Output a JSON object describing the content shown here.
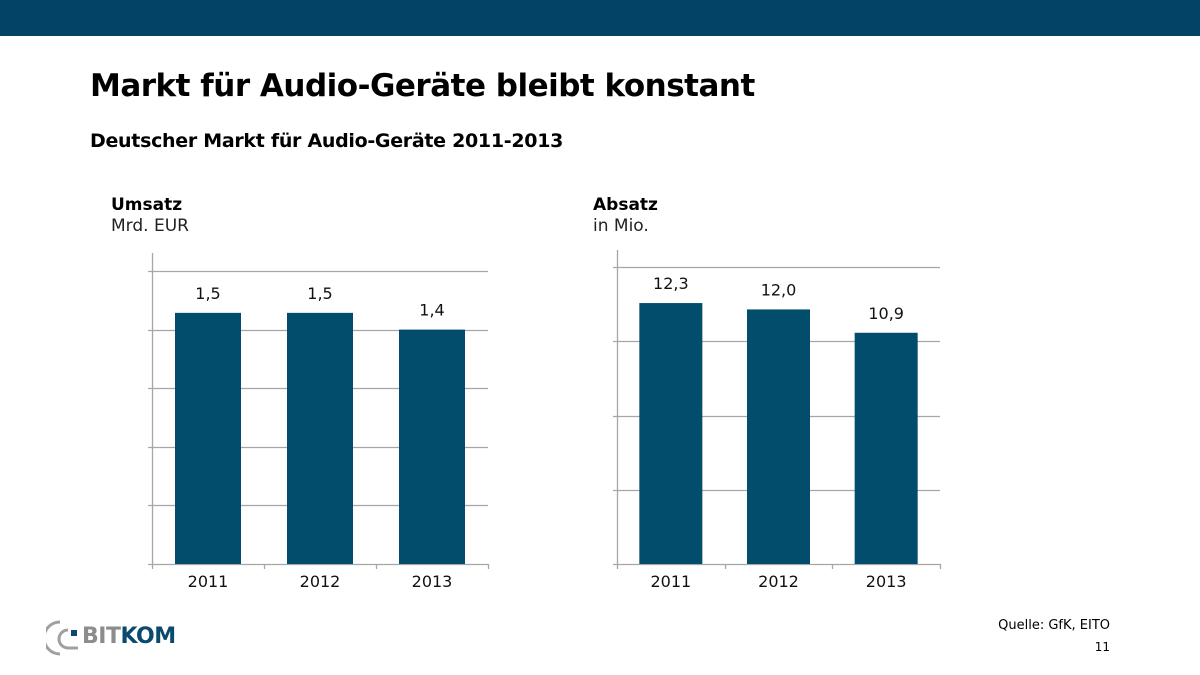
{
  "header": {
    "title": "Markt für Audio-Geräte bleibt konstant",
    "subtitle": "Deutscher Markt für Audio-Geräte 2011-2013"
  },
  "footer": {
    "source": "Quelle: GfK, EITO",
    "page_number": "11",
    "logo": {
      "part1": "BIT",
      "part2": "KOM"
    }
  },
  "colors": {
    "bar": "#024d6c",
    "topbar": "#024366",
    "grid": "#a6a6a6"
  },
  "chart_data": [
    {
      "type": "bar",
      "title": "Umsatz",
      "ylabel": "Mrd. EUR",
      "xlabel": "",
      "categories": [
        "2011",
        "2012",
        "2013"
      ],
      "values": [
        1.5,
        1.5,
        1.4
      ],
      "value_labels": [
        "1,5",
        "1,5",
        "1,4"
      ],
      "ylim": [
        0,
        1.75
      ],
      "grid_step": 0.35,
      "grid": true,
      "legend": "none"
    },
    {
      "type": "bar",
      "title": "Absatz",
      "ylabel": "in Mio.",
      "xlabel": "",
      "categories": [
        "2011",
        "2012",
        "2013"
      ],
      "values": [
        12.3,
        12.0,
        10.9
      ],
      "value_labels": [
        "12,3",
        "12,0",
        "10,9"
      ],
      "ylim": [
        0,
        14
      ],
      "grid_step": 3.5,
      "grid": true,
      "legend": "none"
    }
  ]
}
